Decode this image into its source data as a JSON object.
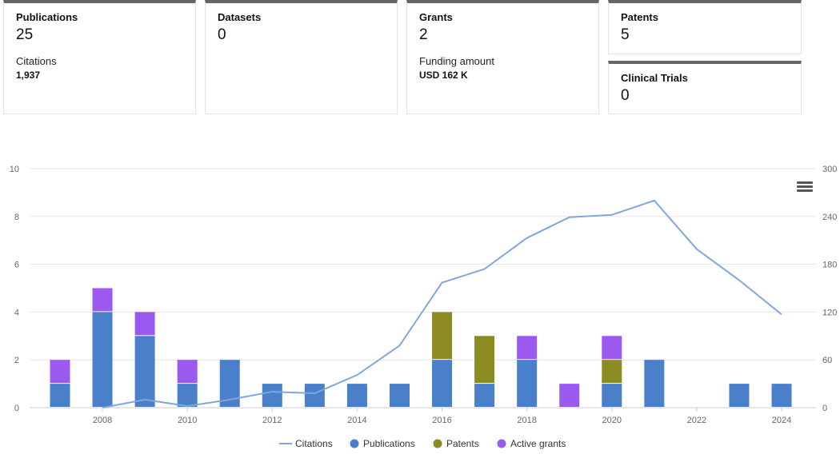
{
  "cards": [
    {
      "label": "Publications",
      "value": "25",
      "sub_label": "Citations",
      "sub_value": "1,937"
    },
    {
      "label": "Datasets",
      "value": "0"
    },
    {
      "label": "Grants",
      "value": "2",
      "sub_label": "Funding amount",
      "sub_value": "USD 162 K"
    },
    {
      "label": "Patents",
      "value": "5"
    },
    {
      "label": "Clinical Trials",
      "value": "0"
    }
  ],
  "menu": {
    "icon": "hamburger-menu-icon"
  },
  "chart_data": {
    "type": "bar",
    "stacked": true,
    "categories": [
      "2007",
      "2008",
      "2009",
      "2010",
      "2011",
      "2012",
      "2013",
      "2014",
      "2015",
      "2016",
      "2017",
      "2018",
      "2019",
      "2020",
      "2021",
      "2022",
      "2023",
      "2024"
    ],
    "x_tick_labels": [
      "2008",
      "2010",
      "2012",
      "2014",
      "2016",
      "2018",
      "2020",
      "2022",
      "2024"
    ],
    "y_left": {
      "range": [
        0,
        10
      ],
      "ticks": [
        "0",
        "2",
        "4",
        "6",
        "8",
        "10"
      ]
    },
    "y_right": {
      "range": [
        0,
        300
      ],
      "ticks": [
        "0",
        "60",
        "120",
        "180",
        "240",
        "300"
      ]
    },
    "series": [
      {
        "name": "Publications",
        "type": "bar",
        "color": "#4a7fc9",
        "values": [
          1,
          4,
          3,
          1,
          2,
          1,
          1,
          1,
          1,
          2,
          1,
          2,
          0,
          1,
          2,
          0,
          1,
          1
        ]
      },
      {
        "name": "Patents",
        "type": "bar",
        "color": "#8b8b22",
        "values": [
          0,
          0,
          0,
          0,
          0,
          0,
          0,
          0,
          0,
          2,
          2,
          0,
          0,
          1,
          0,
          0,
          0,
          0
        ]
      },
      {
        "name": "Active grants",
        "type": "bar",
        "color": "#9b59f0",
        "values": [
          1,
          1,
          1,
          1,
          0,
          0,
          0,
          0,
          0,
          0,
          0,
          1,
          1,
          1,
          0,
          0,
          0,
          0
        ]
      },
      {
        "name": "Citations",
        "type": "line",
        "axis": "right",
        "color": "#7fa8d8",
        "x": [
          "2008",
          "2009",
          "2010",
          "2011",
          "2012",
          "2013",
          "2014",
          "2015",
          "2016",
          "2017",
          "2018",
          "2019",
          "2020",
          "2021",
          "2022",
          "2023",
          "2024"
        ],
        "values": [
          0,
          10,
          2,
          10,
          20,
          18,
          41,
          78,
          157,
          174,
          213,
          239,
          242,
          260,
          199,
          160,
          117
        ]
      }
    ],
    "legend": [
      "Citations",
      "Publications",
      "Patents",
      "Active grants"
    ],
    "legend_position": "bottom"
  }
}
